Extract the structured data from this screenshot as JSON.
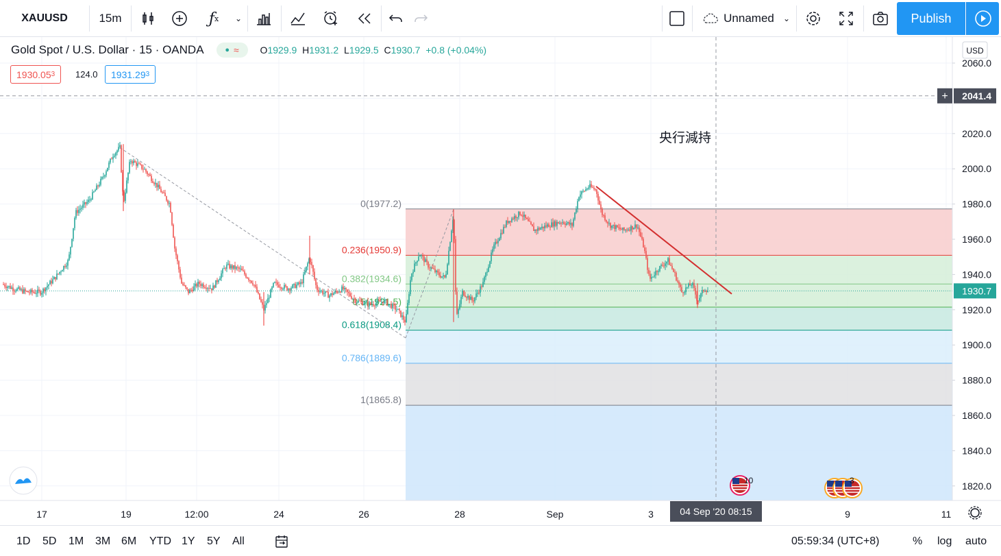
{
  "toolbar": {
    "symbol": "XAUUSD",
    "interval": "15m",
    "layout_name": "Unnamed",
    "publish_label": "Publish"
  },
  "legend": {
    "title": "Gold Spot / U.S. Dollar · 15 · OANDA",
    "o_label": "O",
    "o_val": "1929.9",
    "h_label": "H",
    "h_val": "1931.2",
    "l_label": "L",
    "l_val": "1929.5",
    "c_label": "C",
    "c_val": "1930.7",
    "change": "+0.8 (+0.04%)",
    "sell_price": "1930.05",
    "sell_sup": "3",
    "spread": "124.0",
    "buy_price": "1931.29",
    "buy_sup": "3"
  },
  "colors": {
    "up": "#26a69a",
    "down": "#ef5350",
    "accent": "#2196f3",
    "trendline": "#d32f2f"
  },
  "price_scale": {
    "currency": "USD",
    "ticks": [
      "2060.0",
      "2020.0",
      "2000.0",
      "1980.0",
      "1960.0",
      "1940.0",
      "1920.0",
      "1900.0",
      "1880.0",
      "1860.0",
      "1840.0",
      "1820.0"
    ],
    "crosshair_price": "2041.4",
    "last_price": "1930.7"
  },
  "time_scale": {
    "ticks": [
      "17",
      "19",
      "12:00",
      "24",
      "26",
      "28",
      "Sep",
      "3",
      "9",
      "11"
    ],
    "crosshair_label": "04 Sep '20   08:15"
  },
  "fib": {
    "levels": [
      {
        "label": "0(1977.2)",
        "price": 1977.2,
        "color": "#787b86"
      },
      {
        "label": "0.236(1950.9)",
        "price": 1950.9,
        "color": "#e53935"
      },
      {
        "label": "0.382(1934.6)",
        "price": 1934.6,
        "color": "#81c784"
      },
      {
        "label": "0.5(1921.5)",
        "price": 1921.5,
        "color": "#4caf50"
      },
      {
        "label": "0.618(1908.4)",
        "price": 1908.4,
        "color": "#089981"
      },
      {
        "label": "0.786(1889.6)",
        "price": 1889.6,
        "color": "#64b5f6"
      },
      {
        "label": "1(1865.8)",
        "price": 1865.8,
        "color": "#787b86"
      }
    ]
  },
  "annotation": "央行減持",
  "events": {
    "badge_a": "10",
    "badge_b": "3"
  },
  "chart_data": {
    "type": "candlestick",
    "title": "Gold Spot / U.S. Dollar · 15 · OANDA",
    "xlabel": "",
    "ylabel": "",
    "ylim": [
      1810,
      2075
    ],
    "price_path": [
      [
        0,
        1935
      ],
      [
        20,
        1932
      ],
      [
        40,
        1930
      ],
      [
        60,
        1930
      ],
      [
        80,
        1938
      ],
      [
        100,
        1948
      ],
      [
        110,
        1975
      ],
      [
        130,
        1982
      ],
      [
        150,
        1995
      ],
      [
        165,
        2008
      ],
      [
        175,
        2012
      ],
      [
        180,
        1980
      ],
      [
        190,
        2005
      ],
      [
        210,
        2000
      ],
      [
        230,
        1990
      ],
      [
        248,
        1980
      ],
      [
        255,
        1955
      ],
      [
        265,
        1935
      ],
      [
        275,
        1930
      ],
      [
        290,
        1935
      ],
      [
        310,
        1932
      ],
      [
        330,
        1945
      ],
      [
        350,
        1943
      ],
      [
        370,
        1935
      ],
      [
        385,
        1920
      ],
      [
        400,
        1935
      ],
      [
        420,
        1932
      ],
      [
        440,
        1935
      ],
      [
        452,
        1950
      ],
      [
        462,
        1932
      ],
      [
        480,
        1928
      ],
      [
        500,
        1932
      ],
      [
        520,
        1925
      ],
      [
        540,
        1923
      ],
      [
        560,
        1925
      ],
      [
        580,
        1920
      ],
      [
        592,
        1913
      ],
      [
        600,
        1940
      ],
      [
        612,
        1952
      ],
      [
        625,
        1945
      ],
      [
        640,
        1940
      ],
      [
        650,
        1938
      ],
      [
        662,
        1975
      ],
      [
        666,
        1915
      ],
      [
        675,
        1930
      ],
      [
        690,
        1925
      ],
      [
        705,
        1935
      ],
      [
        720,
        1955
      ],
      [
        740,
        1970
      ],
      [
        760,
        1975
      ],
      [
        780,
        1965
      ],
      [
        800,
        1968
      ],
      [
        820,
        1970
      ],
      [
        835,
        1968
      ],
      [
        845,
        1985
      ],
      [
        860,
        1990
      ],
      [
        870,
        1988
      ],
      [
        878,
        1975
      ],
      [
        890,
        1968
      ],
      [
        910,
        1965
      ],
      [
        930,
        1968
      ],
      [
        940,
        1955
      ],
      [
        948,
        1937
      ],
      [
        960,
        1943
      ],
      [
        975,
        1948
      ],
      [
        985,
        1940
      ],
      [
        995,
        1930
      ],
      [
        1010,
        1935
      ],
      [
        1018,
        1925
      ],
      [
        1028,
        1932
      ],
      [
        1034,
        1930.7
      ]
    ],
    "lines": {
      "fib_start": {
        "from": [
          175,
          2012
        ],
        "to": [
          592,
          1904
        ]
      },
      "fib_retrace": {
        "from": [
          592,
          1904
        ],
        "to": [
          662,
          1977
        ]
      },
      "trendline": {
        "from": [
          870,
          1990
        ],
        "to": [
          1068,
          1929
        ]
      }
    }
  },
  "bottombar": {
    "ranges": [
      "1D",
      "5D",
      "1M",
      "3M",
      "6M",
      "YTD",
      "1Y",
      "5Y",
      "All"
    ],
    "clock": "05:59:34 (UTC+8)",
    "pct_label": "%",
    "log_label": "log",
    "auto_label": "auto"
  }
}
